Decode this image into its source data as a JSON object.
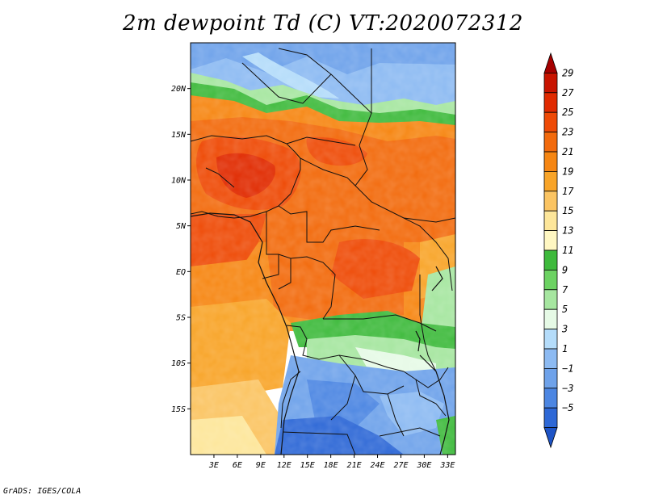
{
  "title": "2m dewpoint Td (C) VT:2020072312",
  "footer": "GrADS: IGES/COLA",
  "map": {
    "projection": "latlon",
    "lon_range": [
      0,
      34
    ],
    "lat_range": [
      -20,
      25
    ],
    "lat_ticks": [
      {
        "label": "20N",
        "value": 20
      },
      {
        "label": "15N",
        "value": 15
      },
      {
        "label": "10N",
        "value": 10
      },
      {
        "label": "5N",
        "value": 5
      },
      {
        "label": "EQ",
        "value": 0
      },
      {
        "label": "5S",
        "value": -5
      },
      {
        "label": "10S",
        "value": -10
      },
      {
        "label": "15S",
        "value": -15
      }
    ],
    "lon_ticks": [
      {
        "label": "3E",
        "value": 3
      },
      {
        "label": "6E",
        "value": 6
      },
      {
        "label": "9E",
        "value": 9
      },
      {
        "label": "12E",
        "value": 12
      },
      {
        "label": "15E",
        "value": 15
      },
      {
        "label": "18E",
        "value": 18
      },
      {
        "label": "21E",
        "value": 21
      },
      {
        "label": "24E",
        "value": 24
      },
      {
        "label": "27E",
        "value": 27
      },
      {
        "label": "30E",
        "value": 30
      },
      {
        "label": "33E",
        "value": 33
      }
    ]
  },
  "colorbar": {
    "levels": [
      {
        "label": "29",
        "value": 29
      },
      {
        "label": "27",
        "value": 27
      },
      {
        "label": "25",
        "value": 25
      },
      {
        "label": "23",
        "value": 23
      },
      {
        "label": "21",
        "value": 21
      },
      {
        "label": "19",
        "value": 19
      },
      {
        "label": "17",
        "value": 17
      },
      {
        "label": "15",
        "value": 15
      },
      {
        "label": "13",
        "value": 13
      },
      {
        "label": "11",
        "value": 11
      },
      {
        "label": "9",
        "value": 9
      },
      {
        "label": "7",
        "value": 7
      },
      {
        "label": "5",
        "value": 5
      },
      {
        "label": "3",
        "value": 3
      },
      {
        "label": "1",
        "value": 1
      },
      {
        "label": "−1",
        "value": -1
      },
      {
        "label": "−3",
        "value": -3
      },
      {
        "label": "−5",
        "value": -5
      }
    ],
    "colors": [
      "#a50000",
      "#c81400",
      "#e02a00",
      "#ee4a06",
      "#f26a0c",
      "#f68612",
      "#f8a428",
      "#fbc462",
      "#fde69a",
      "#fff7c2",
      "#3eba3c",
      "#6cd262",
      "#a6e6a0",
      "#e6fae6",
      "#b4dcfa",
      "#8cbaf2",
      "#6ea2ea",
      "#4c86e2",
      "#2e68d6",
      "#1e54c6"
    ]
  }
}
